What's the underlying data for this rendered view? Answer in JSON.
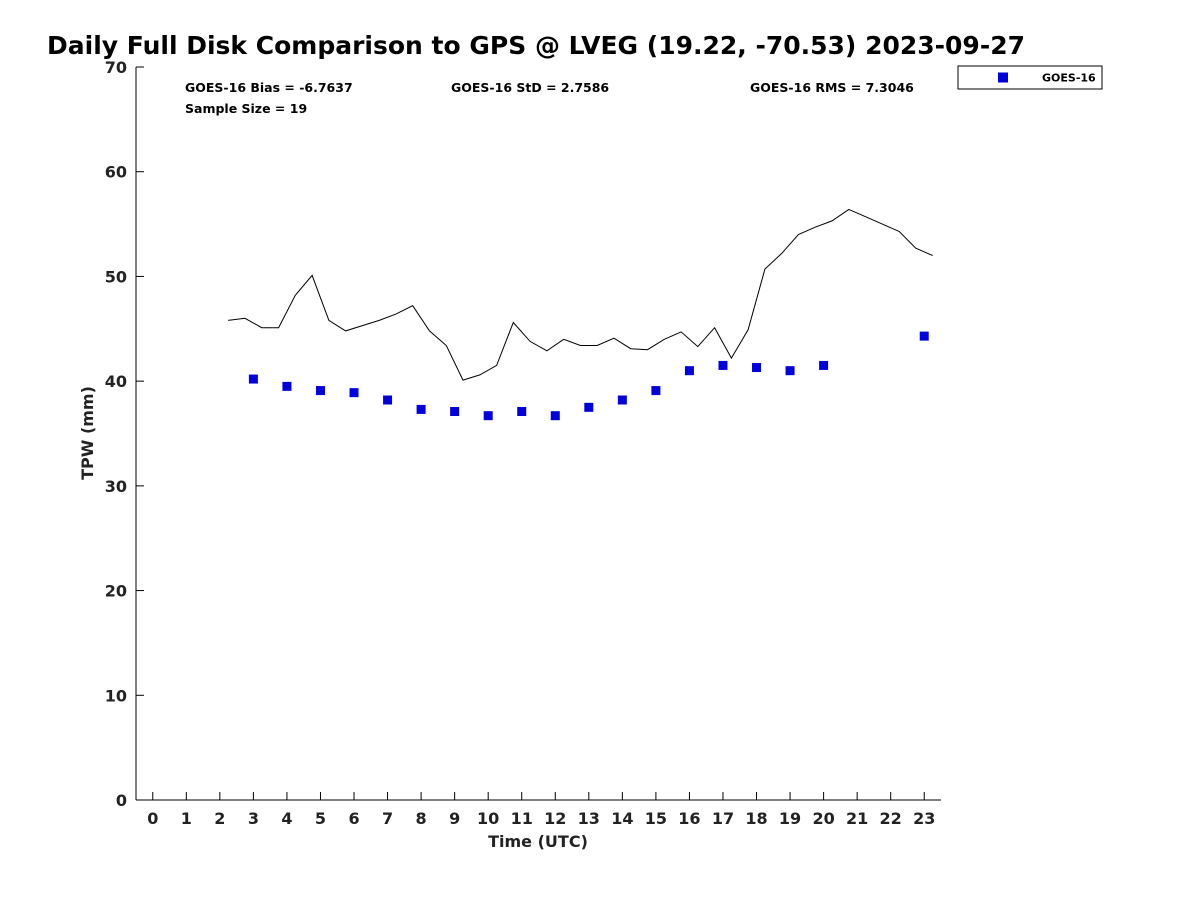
{
  "chart_data": {
    "type": "scatter",
    "title": "Daily Full Disk Comparison to GPS @ LVEG (19.22, -70.53) 2023-09-27",
    "xlabel": "Time (UTC)",
    "ylabel": "TPW (mm)",
    "xlim": [
      -0.5,
      23.5
    ],
    "ylim": [
      0,
      70
    ],
    "x_ticks": [
      "0",
      "1",
      "2",
      "3",
      "4",
      "5",
      "6",
      "7",
      "8",
      "9",
      "10",
      "11",
      "12",
      "13",
      "14",
      "15",
      "16",
      "17",
      "18",
      "19",
      "20",
      "21",
      "22",
      "23"
    ],
    "y_ticks": [
      "0",
      "10",
      "20",
      "30",
      "40",
      "50",
      "60",
      "70"
    ],
    "stats": {
      "bias": "GOES-16 Bias = -6.7637",
      "std": "GOES-16 StD = 2.7586",
      "rms": "GOES-16 RMS = 7.3046",
      "sample": "Sample Size = 19"
    },
    "legend": {
      "position": "top-right",
      "entries": [
        "GOES-16"
      ]
    },
    "colors": {
      "goes": "#0000dd",
      "gps": "#000000"
    },
    "series": [
      {
        "name": "GOES-16",
        "type": "scatter",
        "x": [
          3,
          4,
          5,
          6,
          7,
          8,
          9,
          10,
          11,
          12,
          13,
          14,
          15,
          16,
          17,
          18,
          19,
          20,
          23
        ],
        "y": [
          40.2,
          39.5,
          39.1,
          38.9,
          38.2,
          37.3,
          37.1,
          36.7,
          37.1,
          36.7,
          37.5,
          38.2,
          39.1,
          41.0,
          41.5,
          41.3,
          41.0,
          41.5,
          44.3
        ]
      },
      {
        "type": "line",
        "x": [
          2.25,
          2.75,
          3.25,
          3.75,
          4.25,
          4.75,
          5.25,
          5.75,
          6.25,
          6.75,
          7.25,
          7.75,
          8.25,
          8.75,
          9.25,
          9.75,
          10.25,
          10.75,
          11.25,
          11.75,
          12.25,
          12.75,
          13.25,
          13.75,
          14.25,
          14.75,
          15.25,
          15.75,
          16.25,
          16.75,
          17.25,
          17.75,
          18.25,
          18.75,
          19.25,
          19.75,
          20.25,
          20.75,
          21.25,
          21.75,
          22.25,
          22.75,
          23.25
        ],
        "y": [
          45.8,
          46.0,
          45.1,
          45.1,
          48.2,
          50.1,
          45.8,
          44.8,
          45.3,
          45.8,
          46.4,
          47.2,
          44.8,
          43.4,
          40.1,
          40.6,
          41.5,
          45.6,
          43.8,
          42.9,
          44.0,
          43.4,
          43.4,
          44.1,
          43.1,
          43.0,
          44.0,
          44.7,
          43.3,
          45.1,
          42.2,
          44.9,
          50.7,
          52.2,
          54.0,
          54.7,
          55.3,
          56.4,
          55.7,
          55.0,
          54.3,
          52.7,
          52.0
        ]
      }
    ]
  }
}
